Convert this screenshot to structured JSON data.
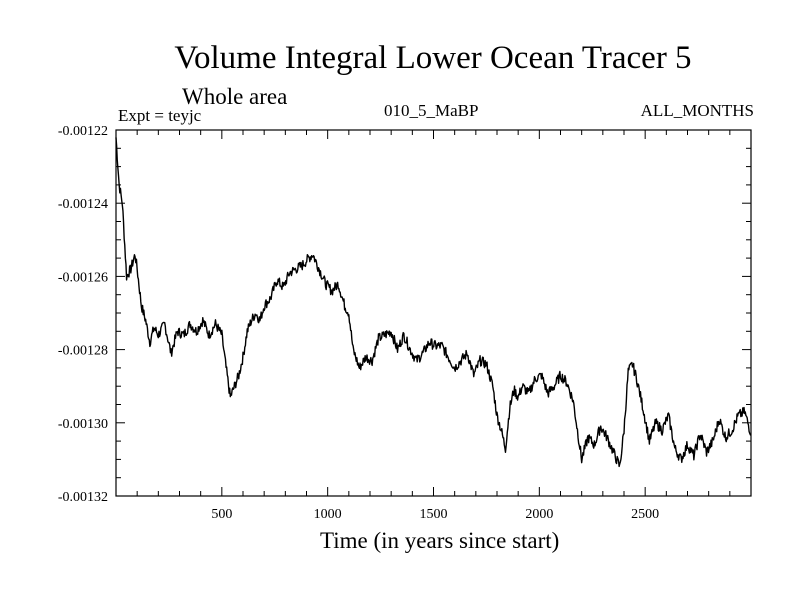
{
  "chart_data": {
    "type": "line",
    "title": "Volume Integral Lower Ocean Tracer 5",
    "subtitle": "Whole area",
    "experiment": "Expt = teyjc",
    "run_label": "010_5_MaBP",
    "period_label": "ALL_MONTHS",
    "xlabel": "Time (in years since start)",
    "ylabel": "",
    "xlim": [
      0,
      3000
    ],
    "ylim": [
      -0.00132,
      -0.00122
    ],
    "xticks": [
      500,
      1000,
      1500,
      2000,
      2500
    ],
    "xtick_labels": [
      "500",
      "1000",
      "1500",
      "2000",
      "2500"
    ],
    "yticks": [
      -0.00122,
      -0.00124,
      -0.00126,
      -0.00128,
      -0.0013,
      -0.00132
    ],
    "ytick_labels": [
      "-0.00122",
      "-0.00124",
      "-0.00126",
      "-0.00128",
      "-0.00130",
      "-0.00132"
    ],
    "grid": false,
    "series": [
      {
        "name": "Volume Integral Lower Ocean Tracer 5",
        "x": [
          0,
          15,
          30,
          50,
          70,
          90,
          100,
          120,
          140,
          160,
          180,
          200,
          230,
          260,
          290,
          320,
          350,
          380,
          410,
          440,
          470,
          500,
          520,
          540,
          560,
          580,
          600,
          620,
          640,
          660,
          680,
          700,
          730,
          760,
          790,
          820,
          850,
          880,
          910,
          930,
          960,
          990,
          1020,
          1050,
          1080,
          1100,
          1120,
          1150,
          1180,
          1210,
          1240,
          1270,
          1300,
          1330,
          1360,
          1390,
          1420,
          1450,
          1480,
          1510,
          1540,
          1570,
          1600,
          1630,
          1660,
          1690,
          1720,
          1750,
          1780,
          1800,
          1820,
          1840,
          1860,
          1880,
          1900,
          1920,
          1950,
          1980,
          2010,
          2040,
          2070,
          2100,
          2130,
          2160,
          2180,
          2200,
          2230,
          2260,
          2290,
          2320,
          2350,
          2380,
          2400,
          2420,
          2440,
          2460,
          2490,
          2520,
          2550,
          2580,
          2610,
          2640,
          2670,
          2700,
          2730,
          2760,
          2790,
          2820,
          2850,
          2880,
          2910,
          2940,
          2970,
          3000
        ],
        "y": [
          -0.001222,
          -0.001235,
          -0.00124,
          -0.00126,
          -0.001258,
          -0.001254,
          -0.001258,
          -0.001268,
          -0.001272,
          -0.001278,
          -0.001274,
          -0.001276,
          -0.001273,
          -0.001281,
          -0.001275,
          -0.001276,
          -0.001273,
          -0.001275,
          -0.001272,
          -0.001276,
          -0.001273,
          -0.001276,
          -0.001285,
          -0.001293,
          -0.00129,
          -0.001287,
          -0.001282,
          -0.001275,
          -0.001272,
          -0.00127,
          -0.001272,
          -0.001268,
          -0.001266,
          -0.001261,
          -0.001263,
          -0.001259,
          -0.001258,
          -0.001257,
          -0.001255,
          -0.001254,
          -0.001258,
          -0.001262,
          -0.001264,
          -0.001262,
          -0.001268,
          -0.00127,
          -0.00128,
          -0.001285,
          -0.001282,
          -0.001283,
          -0.001277,
          -0.001276,
          -0.001275,
          -0.00128,
          -0.001276,
          -0.00128,
          -0.001283,
          -0.001281,
          -0.001278,
          -0.001279,
          -0.001279,
          -0.001282,
          -0.001285,
          -0.001283,
          -0.001281,
          -0.001287,
          -0.001283,
          -0.001284,
          -0.00129,
          -0.001298,
          -0.001302,
          -0.001307,
          -0.001296,
          -0.001291,
          -0.001293,
          -0.00129,
          -0.001292,
          -0.001288,
          -0.001287,
          -0.001292,
          -0.00129,
          -0.001287,
          -0.001289,
          -0.001294,
          -0.001302,
          -0.00131,
          -0.001304,
          -0.001306,
          -0.001301,
          -0.001304,
          -0.001308,
          -0.001312,
          -0.001302,
          -0.001286,
          -0.001284,
          -0.001288,
          -0.001296,
          -0.001305,
          -0.0013,
          -0.001302,
          -0.001298,
          -0.001307,
          -0.00131,
          -0.001306,
          -0.001309,
          -0.001303,
          -0.001308,
          -0.001305,
          -0.001299,
          -0.001304,
          -0.001302,
          -0.001298,
          -0.001297,
          -0.001303
        ]
      }
    ]
  },
  "colors": {
    "line": "#000000",
    "background": "#ffffff"
  }
}
